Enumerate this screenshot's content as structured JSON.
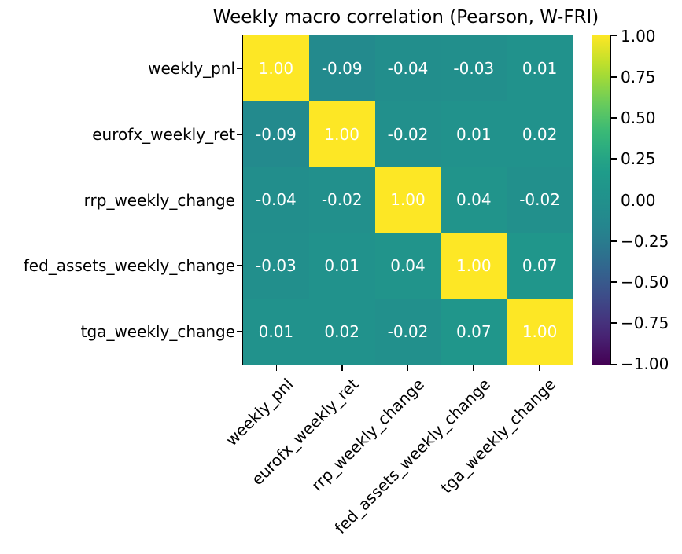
{
  "chart_data": {
    "type": "heatmap",
    "title": "Weekly macro correlation (Pearson, W-FRI)",
    "x_labels": [
      "weekly_pnl",
      "eurofx_weekly_ret",
      "rrp_weekly_change",
      "fed_assets_weekly_change",
      "tga_weekly_change"
    ],
    "y_labels": [
      "weekly_pnl",
      "eurofx_weekly_ret",
      "rrp_weekly_change",
      "fed_assets_weekly_change",
      "tga_weekly_change"
    ],
    "matrix": [
      [
        1.0,
        -0.09,
        -0.04,
        -0.03,
        0.01
      ],
      [
        -0.09,
        1.0,
        -0.02,
        0.01,
        0.02
      ],
      [
        -0.04,
        -0.02,
        1.0,
        0.04,
        -0.02
      ],
      [
        -0.03,
        0.01,
        0.04,
        1.0,
        0.07
      ],
      [
        0.01,
        0.02,
        -0.02,
        0.07,
        1.0
      ]
    ],
    "cell_label_decimals": 2,
    "annotation_color": "#ffffff",
    "colormap": "viridis",
    "vmin": -1.0,
    "vmax": 1.0,
    "grid": false,
    "colorbar": {
      "position": "right",
      "tick_values": [
        1.0,
        0.75,
        0.5,
        0.25,
        0.0,
        -0.25,
        -0.5,
        -0.75,
        -1.0
      ],
      "tick_labels": [
        "1.00",
        "0.75",
        "0.50",
        "0.25",
        "0.00",
        "−0.25",
        "−0.50",
        "−0.75",
        "−1.00"
      ]
    },
    "colors": {
      "background": "#ffffff",
      "text": "#000000",
      "viridis_max": "#fde725",
      "viridis_mid": "#21918c",
      "viridis_min": "#440154"
    }
  }
}
